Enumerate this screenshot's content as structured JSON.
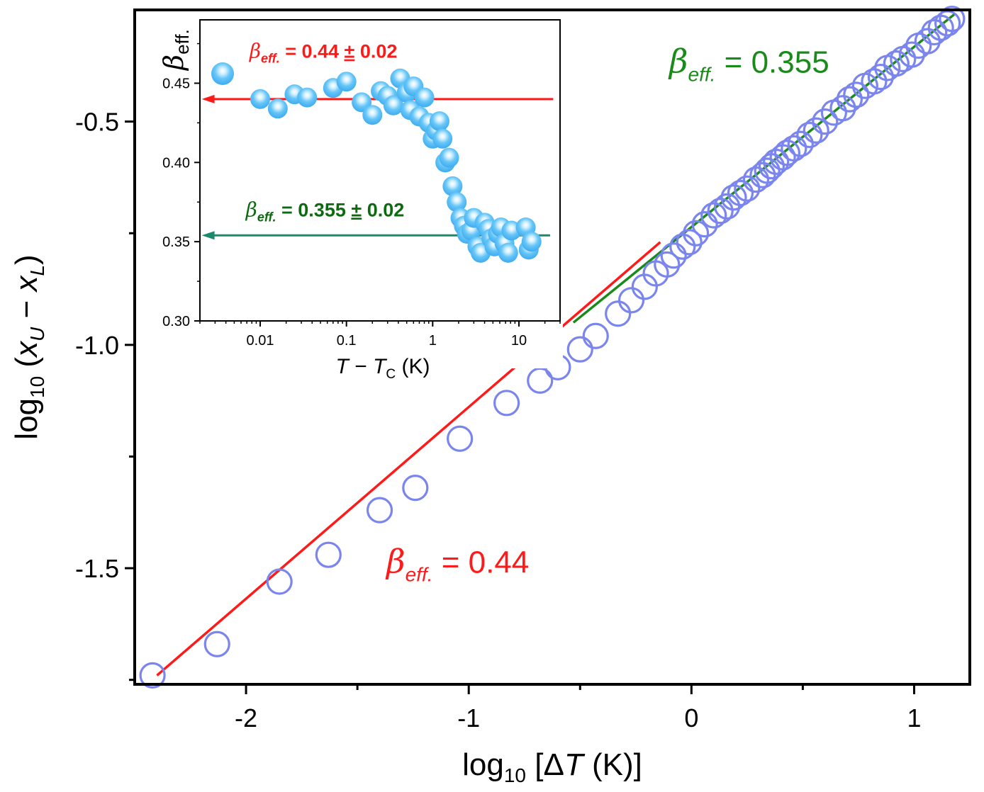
{
  "chart_data": [
    {
      "id": "main",
      "type": "scatter",
      "title": "",
      "xlabel": {
        "prefix": "log",
        "sub": "10",
        "mid": " [Δ",
        "var": "T",
        "unit": "   (K)]"
      },
      "ylabel": {
        "prefix": "log",
        "sub": "10",
        "open": " (",
        "v1": "x",
        "s1": "U",
        "minus": " − ",
        "v2": "x",
        "s2": "L",
        "close": ")"
      },
      "xlim": [
        -2.5,
        1.25
      ],
      "ylim": [
        -1.76,
        -0.25
      ],
      "x_ticks": [
        {
          "value": -2,
          "label": "-2"
        },
        {
          "value": -1,
          "label": "-1"
        },
        {
          "value": 0,
          "label": "0"
        },
        {
          "value": 1,
          "label": "1"
        }
      ],
      "x_minor": [
        -1.5,
        -0.5,
        0.5
      ],
      "y_ticks": [
        {
          "value": -1.5,
          "label": "-1.5"
        },
        {
          "value": -1.0,
          "label": "-1.0"
        },
        {
          "value": -0.5,
          "label": "-0.5"
        }
      ],
      "y_minor": [
        -1.75,
        -1.25,
        -0.75
      ],
      "grid": false,
      "marker_color": "#7b85ee",
      "series": [
        {
          "marker": "open-circle",
          "x": [
            -2.42,
            -2.13,
            -1.85,
            -1.63,
            -1.4,
            -1.24,
            -1.04,
            -0.83,
            -0.68,
            -0.6,
            -0.5,
            -0.43,
            -0.33,
            -0.27,
            -0.21,
            -0.16,
            -0.11,
            -0.08,
            -0.04,
            -0.01,
            0.02,
            0.06,
            0.1,
            0.13,
            0.16,
            0.19,
            0.22,
            0.25,
            0.29,
            0.32,
            0.34,
            0.36,
            0.38,
            0.41,
            0.43,
            0.46,
            0.49,
            0.53,
            0.56,
            0.6,
            0.64,
            0.68,
            0.71,
            0.74,
            0.78,
            0.82,
            0.85,
            0.88,
            0.92,
            0.95,
            0.99,
            1.02,
            1.06,
            1.09,
            1.12,
            1.15,
            1.17
          ],
          "y": [
            -1.74,
            -1.67,
            -1.53,
            -1.47,
            -1.37,
            -1.32,
            -1.21,
            -1.13,
            -1.08,
            -1.05,
            -1.01,
            -0.98,
            -0.93,
            -0.9,
            -0.87,
            -0.84,
            -0.82,
            -0.8,
            -0.78,
            -0.77,
            -0.75,
            -0.73,
            -0.71,
            -0.7,
            -0.69,
            -0.67,
            -0.66,
            -0.65,
            -0.63,
            -0.62,
            -0.61,
            -0.6,
            -0.59,
            -0.58,
            -0.57,
            -0.56,
            -0.55,
            -0.53,
            -0.52,
            -0.5,
            -0.48,
            -0.47,
            -0.45,
            -0.44,
            -0.42,
            -0.41,
            -0.4,
            -0.38,
            -0.37,
            -0.36,
            -0.35,
            -0.33,
            -0.32,
            -0.3,
            -0.29,
            -0.28,
            -0.27
          ]
        }
      ],
      "fit_lines": [
        {
          "color": "#ff1a1a",
          "x": [
            -2.4,
            -0.14
          ],
          "y": [
            -1.74,
            -0.77
          ]
        },
        {
          "color": "#1a8a1a",
          "x": [
            -0.53,
            1.18
          ],
          "y": [
            -0.95,
            -0.26
          ]
        }
      ],
      "annotations": [
        {
          "color": "#ff1a1a",
          "symbol": "β",
          "sub": "eff.",
          "text": " = 0.44",
          "x": -1.37,
          "y": -1.51
        },
        {
          "color": "#1a8a1a",
          "symbol": "β",
          "sub": "eff.",
          "text": " = 0.355",
          "x": -0.1,
          "y": -0.39
        }
      ]
    },
    {
      "id": "inset",
      "type": "scatter",
      "xscale": "log",
      "xlabel": {
        "var1": "T",
        "minus": "  −  ",
        "var2": "T",
        "sub": "C",
        "unit": "   (K)"
      },
      "ylabel": {
        "symbol": "β",
        "sub": "eff."
      },
      "xlim": [
        0.002,
        30
      ],
      "ylim": [
        0.3,
        0.49
      ],
      "x_ticks": [
        {
          "value": 0.01,
          "label": "0.01"
        },
        {
          "value": 0.1,
          "label": "0.1"
        },
        {
          "value": 1,
          "label": "1"
        },
        {
          "value": 10,
          "label": "10"
        }
      ],
      "y_ticks": [
        {
          "value": 0.3,
          "label": "0.30"
        },
        {
          "value": 0.35,
          "label": "0.35"
        },
        {
          "value": 0.4,
          "label": "0.40"
        },
        {
          "value": 0.45,
          "label": "0.45"
        }
      ],
      "y_minor": [
        0.325,
        0.375,
        0.425,
        0.475
      ],
      "marker_color": "#5bc0f5",
      "series": [
        {
          "marker": "filled-sphere",
          "x": [
            0.01,
            0.016,
            0.025,
            0.035,
            0.07,
            0.1,
            0.15,
            0.2,
            0.25,
            0.3,
            0.35,
            0.42,
            0.5,
            0.55,
            0.6,
            0.7,
            0.8,
            0.9,
            1.0,
            1.1,
            1.2,
            1.3,
            1.4,
            1.55,
            1.7,
            1.9,
            2.1,
            2.3,
            2.5,
            2.8,
            3.0,
            3.3,
            3.6,
            4.0,
            4.4,
            4.8,
            5.2,
            5.7,
            6.2,
            6.8,
            7.5,
            8.2,
            12.0,
            13.0,
            14.0
          ],
          "y": [
            0.44,
            0.434,
            0.443,
            0.441,
            0.447,
            0.451,
            0.438,
            0.43,
            0.445,
            0.442,
            0.436,
            0.453,
            0.444,
            0.433,
            0.448,
            0.429,
            0.441,
            0.425,
            0.415,
            0.42,
            0.426,
            0.415,
            0.4,
            0.403,
            0.385,
            0.375,
            0.365,
            0.36,
            0.355,
            0.357,
            0.365,
            0.347,
            0.343,
            0.362,
            0.358,
            0.352,
            0.347,
            0.355,
            0.359,
            0.349,
            0.343,
            0.357,
            0.359,
            0.345,
            0.35
          ]
        }
      ],
      "legend": {
        "placement": "top-left"
      },
      "arrows": [
        {
          "color": "#ff1a1a",
          "y": 0.44,
          "x_from": 25,
          "x_to": 0.0021
        },
        {
          "color": "#1b8a6b",
          "y": 0.354,
          "x_from": 23,
          "x_to": 0.0021
        }
      ],
      "annotations": [
        {
          "color": "#ff1a1a",
          "symbol": "β",
          "sub": "eff.",
          "text": " = 0.44 ",
          "pm": "±",
          "text2": " 0.02",
          "x": 0.0075,
          "y": 0.466
        },
        {
          "color": "#0e6a10",
          "symbol": "β",
          "sub": "eff.",
          "text": " = 0.355 ",
          "pm": "±",
          "text2": " 0.02",
          "x": 0.0068,
          "y": 0.366
        }
      ]
    }
  ]
}
